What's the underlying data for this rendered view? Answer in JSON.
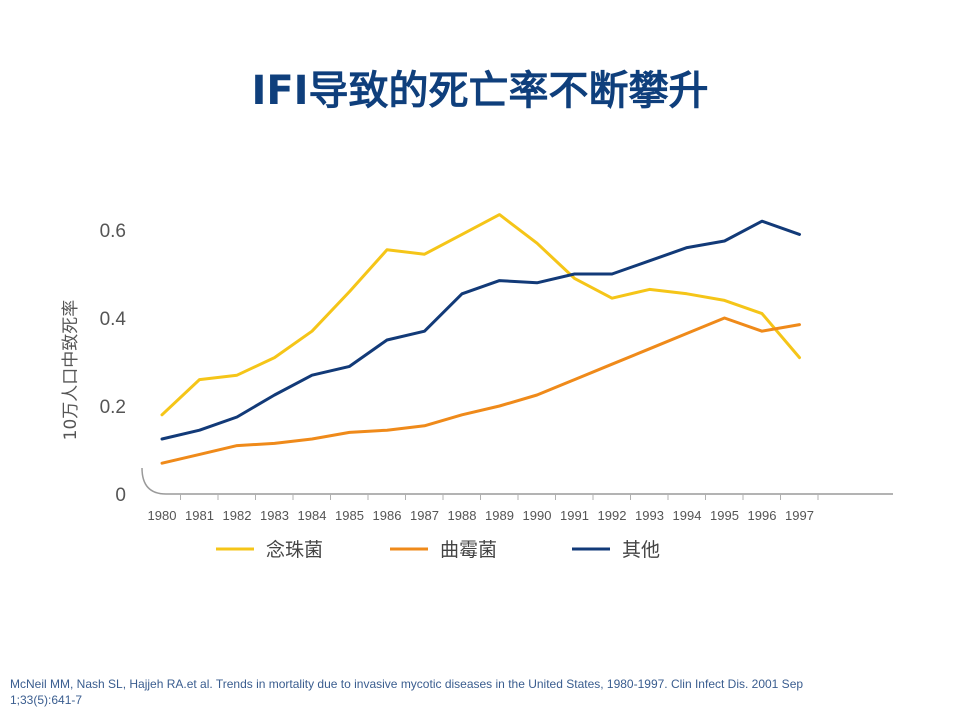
{
  "slide": {
    "title": "IFI导致的死亡率不断攀升",
    "citation": "McNeil MM, Nash SL, Hajjeh RA.et al. Trends in mortality due to invasive mycotic diseases in the United States, 1980-1997. Clin Infect Dis. 2001 Sep 1;33(5):641-7"
  },
  "chart_data": {
    "type": "line",
    "title": "",
    "xlabel": "",
    "ylabel": "10万人口中致死率",
    "categories": [
      "1980",
      "1981",
      "1982",
      "1983",
      "1984",
      "1985",
      "1986",
      "1987",
      "1988",
      "1989",
      "1990",
      "1991",
      "1992",
      "1993",
      "1994",
      "1995",
      "1996",
      "1997"
    ],
    "y_ticks": [
      "0",
      "0.2",
      "0.4",
      "0.6"
    ],
    "ylim": [
      0,
      0.6
    ],
    "grid": false,
    "legend_position": "bottom",
    "series": [
      {
        "name": "念珠菌",
        "color": "#f5c518",
        "values": [
          0.18,
          0.26,
          0.27,
          0.31,
          0.37,
          0.46,
          0.555,
          0.545,
          0.59,
          0.635,
          0.57,
          0.49,
          0.445,
          0.465,
          0.455,
          0.44,
          0.41,
          0.31
        ]
      },
      {
        "name": "曲霉菌",
        "color": "#ef8a1a",
        "values": [
          0.07,
          0.09,
          0.11,
          0.115,
          0.125,
          0.14,
          0.145,
          0.155,
          0.18,
          0.2,
          0.225,
          0.26,
          0.295,
          0.33,
          0.365,
          0.4,
          0.37,
          0.385
        ]
      },
      {
        "name": "其他",
        "color": "#123a78",
        "values": [
          0.125,
          0.145,
          0.175,
          0.225,
          0.27,
          0.29,
          0.35,
          0.37,
          0.455,
          0.485,
          0.48,
          0.5,
          0.5,
          0.53,
          0.56,
          0.575,
          0.62,
          0.59
        ]
      }
    ]
  }
}
